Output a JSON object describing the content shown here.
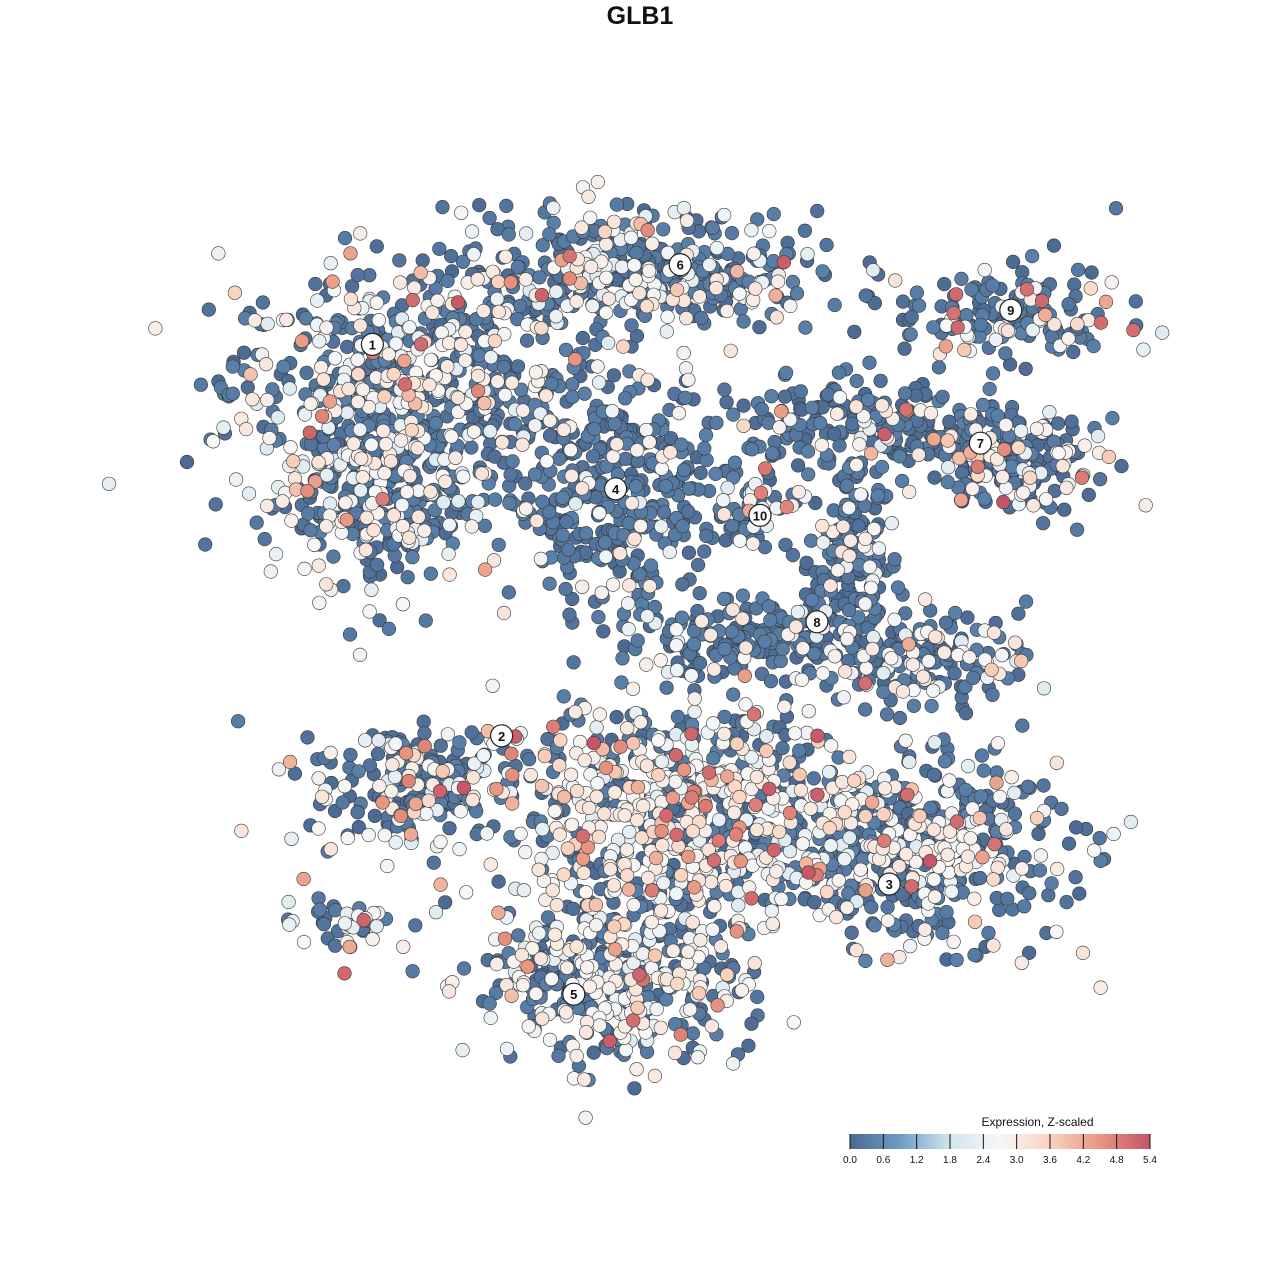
{
  "chart_data": {
    "type": "scatter",
    "title": "GLB1",
    "xlabel": "",
    "ylabel": "",
    "axes_visible": false,
    "grid": false,
    "clusters": [
      {
        "label": "1",
        "x": -7.7,
        "y": 7.7
      },
      {
        "label": "2",
        "x": -4.3,
        "y": -2.6
      },
      {
        "label": "3",
        "x": 5.9,
        "y": -6.5
      },
      {
        "label": "4",
        "x": -1.3,
        "y": 3.9
      },
      {
        "label": "5",
        "x": -2.4,
        "y": -9.4
      },
      {
        "label": "6",
        "x": 0.4,
        "y": 9.8
      },
      {
        "label": "7",
        "x": 8.3,
        "y": 5.1
      },
      {
        "label": "8",
        "x": 4.0,
        "y": 0.4
      },
      {
        "label": "9",
        "x": 9.1,
        "y": 8.6
      },
      {
        "label": "10",
        "x": 2.5,
        "y": 3.2
      }
    ],
    "point_groups": [
      {
        "x": -7.0,
        "y": 6.5,
        "sx": 4.5,
        "sy": 3.2,
        "n": 650,
        "light": 0.35,
        "high": 0.05
      },
      {
        "x": -7.5,
        "y": 3.3,
        "sx": 2.3,
        "sy": 2.4,
        "n": 220,
        "light": 0.3,
        "high": 0.02
      },
      {
        "x": -0.8,
        "y": 9.6,
        "sx": 4.8,
        "sy": 1.6,
        "n": 420,
        "light": 0.3,
        "high": 0.04
      },
      {
        "x": -1.3,
        "y": 3.8,
        "sx": 2.8,
        "sy": 3.2,
        "n": 380,
        "light": 0.12,
        "high": 0.0
      },
      {
        "x": 5.5,
        "y": 5.6,
        "sx": 4.2,
        "sy": 1.1,
        "n": 220,
        "light": 0.15,
        "high": 0.03
      },
      {
        "x": 9.3,
        "y": 4.5,
        "sx": 2.1,
        "sy": 1.2,
        "n": 170,
        "light": 0.3,
        "high": 0.07
      },
      {
        "x": 9.0,
        "y": 8.5,
        "sx": 3.0,
        "sy": 1.3,
        "n": 170,
        "light": 0.2,
        "high": 0.06
      },
      {
        "x": 4.8,
        "y": 2.0,
        "sx": 1.2,
        "sy": 2.6,
        "n": 170,
        "light": 0.15,
        "high": 0.0
      },
      {
        "x": 7.0,
        "y": -0.5,
        "sx": 2.6,
        "sy": 1.2,
        "n": 160,
        "light": 0.35,
        "high": 0.04
      },
      {
        "x": 2.3,
        "y": 3.2,
        "sx": 0.9,
        "sy": 1.2,
        "n": 55,
        "light": 0.2,
        "high": 0.05
      },
      {
        "x": 2.0,
        "y": 0.0,
        "sx": 3.0,
        "sy": 1.0,
        "n": 170,
        "light": 0.1,
        "high": 0.0
      },
      {
        "x": -6.5,
        "y": -3.9,
        "sx": 2.8,
        "sy": 1.6,
        "n": 220,
        "light": 0.3,
        "high": 0.08
      },
      {
        "x": 0.5,
        "y": -4.6,
        "sx": 5.0,
        "sy": 3.0,
        "n": 750,
        "light": 0.45,
        "high": 0.12
      },
      {
        "x": 6.6,
        "y": -5.6,
        "sx": 3.8,
        "sy": 2.4,
        "n": 480,
        "light": 0.3,
        "high": 0.04
      },
      {
        "x": -1.5,
        "y": -9.0,
        "sx": 3.5,
        "sy": 2.2,
        "n": 430,
        "light": 0.4,
        "high": 0.06
      },
      {
        "x": -8.5,
        "y": -7.5,
        "sx": 1.8,
        "sy": 0.8,
        "n": 40,
        "light": 0.3,
        "high": 0.1
      }
    ],
    "colorbar": {
      "title": "Expression, Z-scaled",
      "range": [
        0.0,
        5.4
      ],
      "ticks": [
        "0.0",
        "0.6",
        "1.2",
        "1.8",
        "2.4",
        "3.0",
        "3.6",
        "4.2",
        "4.8",
        "5.4"
      ],
      "colors": [
        "#4b6a93",
        "#6b9cc6",
        "#d2e5ef",
        "#f7f7f7",
        "#f9d3bf",
        "#e8957f",
        "#c55366"
      ]
    }
  }
}
